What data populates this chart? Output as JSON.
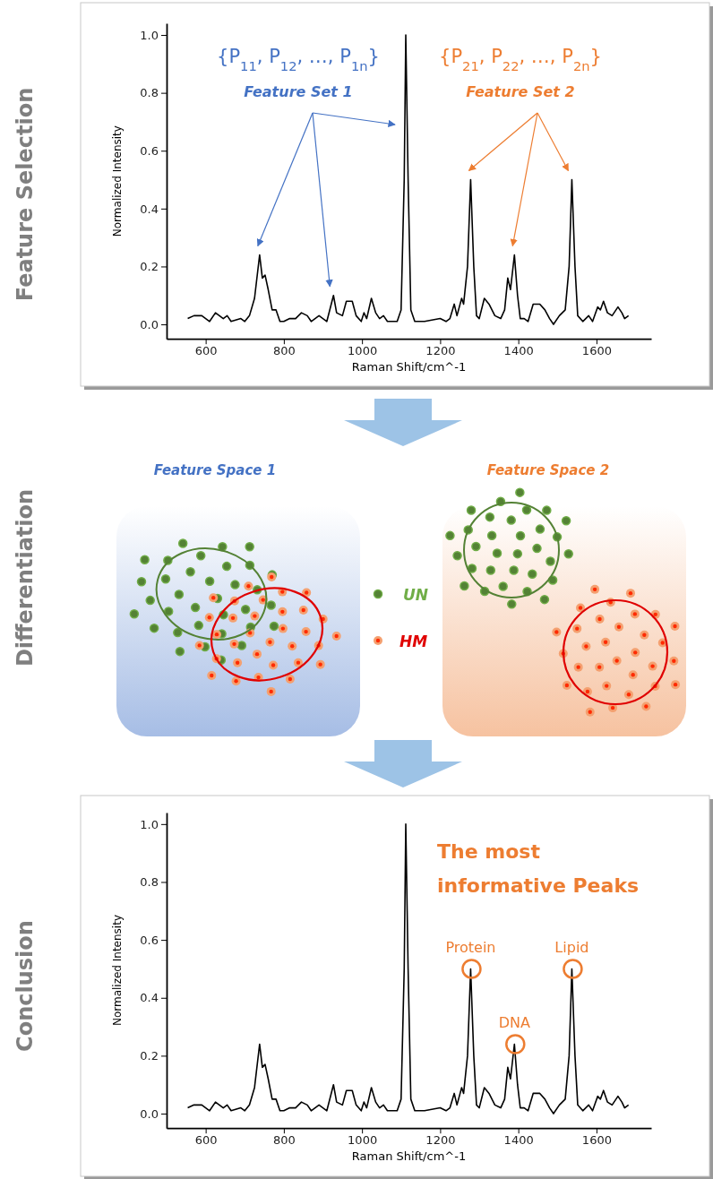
{
  "chart_data": [
    {
      "type": "line",
      "title": "Feature Selection",
      "xlabel": "Raman Shift/cm^-1",
      "ylabel": "Normalized Intensity",
      "x": [
        554,
        570,
        590,
        610,
        625,
        635,
        645,
        655,
        665,
        690,
        700,
        712,
        725,
        738,
        745,
        752,
        760,
        770,
        780,
        790,
        800,
        815,
        830,
        845,
        860,
        870,
        890,
        910,
        927,
        935,
        950,
        960,
        975,
        985,
        998,
        1005,
        1012,
        1024,
        1035,
        1045,
        1055,
        1065,
        1090,
        1100,
        1108,
        1112,
        1118,
        1125,
        1135,
        1160,
        1200,
        1215,
        1225,
        1236,
        1243,
        1255,
        1260,
        1270,
        1278,
        1286,
        1293,
        1300,
        1313,
        1325,
        1340,
        1355,
        1365,
        1373,
        1380,
        1390,
        1398,
        1405,
        1415,
        1425,
        1438,
        1455,
        1468,
        1480,
        1490,
        1505,
        1520,
        1530,
        1537,
        1545,
        1552,
        1565,
        1580,
        1590,
        1603,
        1610,
        1618,
        1628,
        1640,
        1655,
        1665,
        1672,
        1682
      ],
      "series": [
        {
          "color": "#000000",
          "values": [
            0.02,
            0.03,
            0.03,
            0.01,
            0.04,
            0.03,
            0.02,
            0.03,
            0.01,
            0.02,
            0.01,
            0.03,
            0.09,
            0.24,
            0.16,
            0.17,
            0.12,
            0.05,
            0.05,
            0.01,
            0.01,
            0.02,
            0.02,
            0.04,
            0.03,
            0.01,
            0.03,
            0.01,
            0.1,
            0.04,
            0.03,
            0.08,
            0.08,
            0.03,
            0.01,
            0.04,
            0.02,
            0.09,
            0.04,
            0.02,
            0.03,
            0.01,
            0.01,
            0.05,
            0.5,
            1.0,
            0.5,
            0.05,
            0.01,
            0.01,
            0.02,
            0.01,
            0.02,
            0.07,
            0.03,
            0.09,
            0.07,
            0.2,
            0.5,
            0.2,
            0.03,
            0.02,
            0.09,
            0.07,
            0.03,
            0.02,
            0.05,
            0.16,
            0.12,
            0.24,
            0.1,
            0.02,
            0.02,
            0.01,
            0.07,
            0.07,
            0.05,
            0.02,
            0.0,
            0.03,
            0.05,
            0.2,
            0.5,
            0.2,
            0.03,
            0.01,
            0.03,
            0.01,
            0.06,
            0.05,
            0.08,
            0.04,
            0.03,
            0.06,
            0.04,
            0.02,
            0.03
          ]
        }
      ],
      "xlim": [
        500,
        1740
      ],
      "ylim": [
        -0.05,
        1.04
      ],
      "xticks": [
        600,
        800,
        1000,
        1200,
        1400,
        1600
      ],
      "yticks": [
        {
          "value": 0,
          "label": "0.0"
        },
        {
          "value": 0.2,
          "label": "0.2"
        },
        {
          "value": 0.4,
          "label": "0.4"
        },
        {
          "value": 0.6,
          "label": "0.6"
        },
        {
          "value": 0.8,
          "label": "0.8"
        },
        {
          "value": 1,
          "label": "1.0"
        }
      ],
      "annotations": [
        "{P$_{11}$, P$_{12}$, …, P$_{1n}$}",
        "Feature Set 1",
        "{P$_{21}$, P$_{22}$, …, P$_{2n}$}",
        "Feature Set 2"
      ]
    },
    {
      "type": "other",
      "title": "Differentiation",
      "annotations": [
        "Feature Space 1",
        "Feature Space 2",
        "UN",
        "HM"
      ]
    },
    {
      "type": "line",
      "title": "Conclusion",
      "xlabel": "Raman Shift/cm^-1",
      "ylabel": "Normalized Intensity",
      "x": [
        554,
        570,
        590,
        610,
        625,
        635,
        645,
        655,
        665,
        690,
        700,
        712,
        725,
        738,
        745,
        752,
        760,
        770,
        780,
        790,
        800,
        815,
        830,
        845,
        860,
        870,
        890,
        910,
        927,
        935,
        950,
        960,
        975,
        985,
        998,
        1005,
        1012,
        1024,
        1035,
        1045,
        1055,
        1065,
        1090,
        1100,
        1108,
        1112,
        1118,
        1125,
        1135,
        1160,
        1200,
        1215,
        1225,
        1236,
        1243,
        1255,
        1260,
        1270,
        1278,
        1286,
        1293,
        1300,
        1313,
        1325,
        1340,
        1355,
        1365,
        1373,
        1380,
        1390,
        1398,
        1405,
        1415,
        1425,
        1438,
        1455,
        1468,
        1480,
        1490,
        1505,
        1520,
        1530,
        1537,
        1545,
        1552,
        1565,
        1580,
        1590,
        1603,
        1610,
        1618,
        1628,
        1640,
        1655,
        1665,
        1672,
        1682
      ],
      "series": [
        {
          "color": "#000000",
          "values": [
            0.02,
            0.03,
            0.03,
            0.01,
            0.04,
            0.03,
            0.02,
            0.03,
            0.01,
            0.02,
            0.01,
            0.03,
            0.09,
            0.24,
            0.16,
            0.17,
            0.12,
            0.05,
            0.05,
            0.01,
            0.01,
            0.02,
            0.02,
            0.04,
            0.03,
            0.01,
            0.03,
            0.01,
            0.1,
            0.04,
            0.03,
            0.08,
            0.08,
            0.03,
            0.01,
            0.04,
            0.02,
            0.09,
            0.04,
            0.02,
            0.03,
            0.01,
            0.01,
            0.05,
            0.5,
            1.0,
            0.5,
            0.05,
            0.01,
            0.01,
            0.02,
            0.01,
            0.02,
            0.07,
            0.03,
            0.09,
            0.07,
            0.2,
            0.5,
            0.2,
            0.03,
            0.02,
            0.09,
            0.07,
            0.03,
            0.02,
            0.05,
            0.16,
            0.12,
            0.24,
            0.1,
            0.02,
            0.02,
            0.01,
            0.07,
            0.07,
            0.05,
            0.02,
            0.0,
            0.03,
            0.05,
            0.2,
            0.5,
            0.2,
            0.03,
            0.01,
            0.03,
            0.01,
            0.06,
            0.05,
            0.08,
            0.04,
            0.03,
            0.06,
            0.04,
            0.02,
            0.03
          ]
        }
      ],
      "xlim": [
        500,
        1740
      ],
      "ylim": [
        -0.05,
        1.04
      ],
      "xticks": [
        600,
        800,
        1000,
        1200,
        1400,
        1600
      ],
      "yticks": [
        {
          "value": 0,
          "label": "0.0"
        },
        {
          "value": 0.2,
          "label": "0.2"
        },
        {
          "value": 0.4,
          "label": "0.4"
        },
        {
          "value": 0.6,
          "label": "0.6"
        },
        {
          "value": 0.8,
          "label": "0.8"
        },
        {
          "value": 1,
          "label": "1.0"
        }
      ],
      "annotations": [
        "The most informative Peaks",
        {
          "text": "Protein",
          "x": 1278,
          "y": 0.5
        },
        {
          "text": "DNA",
          "x": 1390,
          "y": 0.24
        },
        {
          "text": "Lipid",
          "x": 1537,
          "y": 0.5
        }
      ]
    }
  ]
}
